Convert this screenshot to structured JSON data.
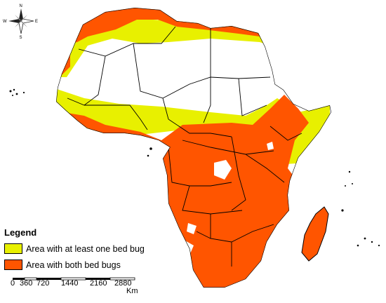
{
  "compass": {
    "n": "N",
    "s": "S",
    "e": "E",
    "w": "W"
  },
  "legend": {
    "title": "Legend",
    "items": [
      {
        "label": "Area with at least one bed bug",
        "color": "#e8f000"
      },
      {
        "label": "Area with both bed bugs",
        "color": "#ff5500"
      }
    ]
  },
  "scale_bar": {
    "ticks": [
      "0",
      "360",
      "720",
      "1440",
      "2160",
      "2880"
    ],
    "unit": "Km"
  },
  "colors": {
    "land_unaffected": "#ffffff",
    "borders": "#000000"
  }
}
